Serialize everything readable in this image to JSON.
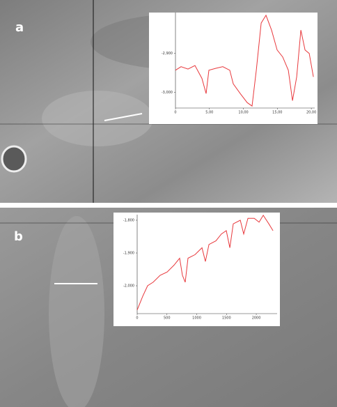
{
  "panel_labels": [
    "a",
    "b"
  ],
  "chart_data": [
    {
      "type": "line",
      "color": "#e8383c",
      "x": [
        0,
        0.82,
        1.85,
        2.87,
        3.9,
        4.51,
        4.92,
        5.95,
        6.97,
        8.0,
        8.51,
        9.54,
        10.56,
        11.28,
        11.9,
        12.62,
        13.33,
        14.15,
        14.97,
        15.79,
        16.62,
        17.23,
        17.85,
        18.46,
        19.08,
        19.69,
        20.31
      ],
      "values": [
        -2943,
        -2934,
        -2940,
        -2931,
        -2964,
        -3003,
        -2943,
        -2938,
        -2934,
        -2943,
        -2978,
        -3003,
        -3026,
        -3035,
        -2943,
        -2822,
        -2802,
        -2840,
        -2891,
        -2909,
        -2943,
        -3021,
        -2960,
        -2840,
        -2891,
        -2900,
        -2960
      ],
      "xlim": [
        0,
        20.5
      ],
      "ylim": [
        -3040,
        -2795
      ],
      "xticks": [
        0,
        {
          "value": 5,
          "label": "5,00"
        },
        {
          "value": 10,
          "label": "10,00"
        },
        {
          "value": 15,
          "label": "15,00"
        },
        {
          "value": 20,
          "label": "20,00"
        }
      ],
      "yticks": [
        {
          "value": -2900,
          "label": "-2,900"
        },
        {
          "value": -3000,
          "label": "-3,000"
        }
      ]
    },
    {
      "type": "line",
      "color": "#e8383c",
      "x": [
        0,
        94,
        175,
        269,
        386,
        503,
        620,
        713,
        760,
        807,
        854,
        971,
        1088,
        1146,
        1205,
        1322,
        1415,
        1497,
        1556,
        1614,
        1731,
        1789,
        1860,
        1965,
        2047,
        2117,
        2211,
        2281
      ],
      "values": [
        -2074,
        -2032,
        -2000,
        -1989,
        -1968,
        -1958,
        -1937,
        -1916,
        -1968,
        -1989,
        -1916,
        -1905,
        -1884,
        -1926,
        -1874,
        -1863,
        -1842,
        -1832,
        -1884,
        -1811,
        -1800,
        -1842,
        -1794,
        -1794,
        -1806,
        -1785,
        -1811,
        -1832
      ],
      "xlim": [
        0,
        2350
      ],
      "ylim": [
        -2085,
        -1783
      ],
      "xticks": [
        0,
        500,
        1000,
        1500,
        2000
      ],
      "yticks": [
        {
          "value": -1800,
          "label": "-1,800"
        },
        {
          "value": -1900,
          "label": "-1,900"
        },
        {
          "value": -2000,
          "label": "-2,000"
        }
      ]
    }
  ]
}
